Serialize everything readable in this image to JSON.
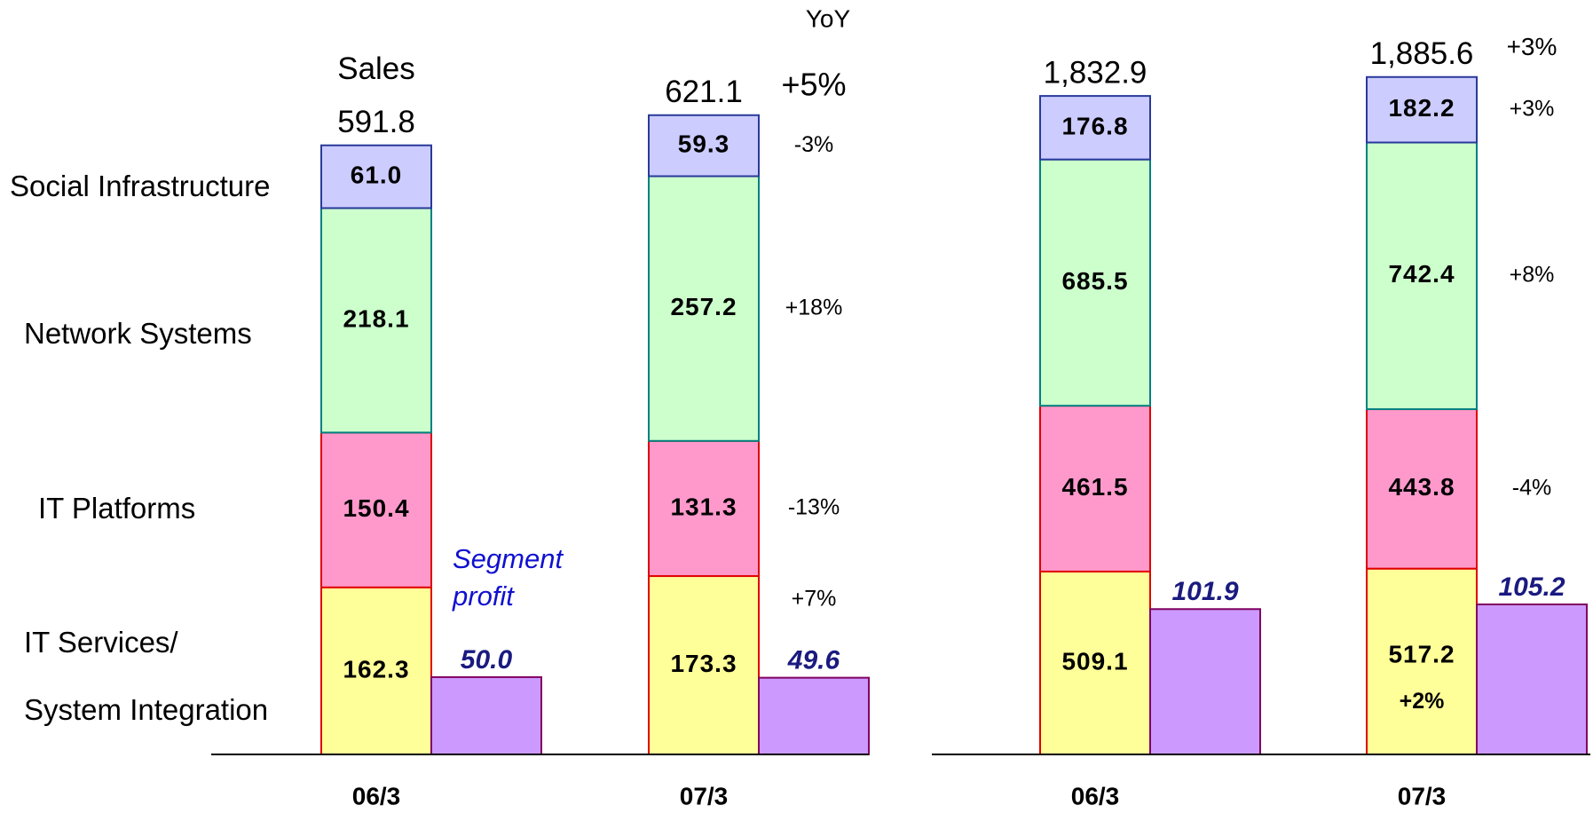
{
  "chart_data": [
    {
      "type": "bar",
      "stacked": true,
      "categories": [
        "06/3",
        "07/3"
      ],
      "total_label": "Sales",
      "yoy_label": "YoY",
      "totals": [
        591.8,
        621.1
      ],
      "total_yoy": 5,
      "total_yoy_label": "+5%",
      "ylim": [
        0,
        733
      ],
      "y2lim": [
        0,
        488
      ],
      "series": [
        {
          "name": "IT Services/\nSystem Integration",
          "color": "#ffff99",
          "border": "#e00000",
          "values": [
            162.3,
            173.3
          ],
          "value_labels": [
            "162.3",
            "173.3"
          ],
          "yoy": 7,
          "yoy_label": "+7%"
        },
        {
          "name": "IT Platforms",
          "color": "#ff99cc",
          "border": "#e00000",
          "values": [
            150.4,
            131.3
          ],
          "value_labels": [
            "150.4",
            "131.3"
          ],
          "yoy": -13,
          "yoy_label": "-13%"
        },
        {
          "name": "Network Systems",
          "color": "#ccffcc",
          "border": "#008080",
          "values": [
            218.1,
            257.2
          ],
          "value_labels": [
            "218.1",
            "257.2"
          ],
          "yoy": 18,
          "yoy_label": "+18%"
        },
        {
          "name": "Social Infrastructure",
          "color": "#ccccff",
          "border": "#2a3a9a",
          "values": [
            61.0,
            59.3
          ],
          "value_labels": [
            "61.0",
            "59.3"
          ],
          "yoy": -3,
          "yoy_label": "-3%"
        }
      ],
      "profit": {
        "name": "Segment\nprofit",
        "color": "#cc99ff",
        "border": "#800060",
        "axis": "y2",
        "values": [
          50.0,
          49.6
        ],
        "value_labels": [
          "50.0",
          "49.6"
        ]
      }
    },
    {
      "type": "bar",
      "stacked": true,
      "categories": [
        "06/3",
        "07/3"
      ],
      "totals": [
        1832.9,
        1885.6
      ],
      "totals_labels": [
        "1,832.9",
        "1,885.6"
      ],
      "total_yoy": 3,
      "total_yoy_label": "+3%",
      "ylim": [
        0,
        2100
      ],
      "y2lim": [
        0,
        529
      ],
      "series": [
        {
          "color": "#ffff99",
          "border": "#e00000",
          "values": [
            509.1,
            517.2
          ],
          "value_labels": [
            "509.1",
            "517.2"
          ],
          "yoy": 2,
          "yoy_label": "+2%"
        },
        {
          "color": "#ff99cc",
          "border": "#e00000",
          "values": [
            461.5,
            443.8
          ],
          "value_labels": [
            "461.5",
            "443.8"
          ],
          "yoy": -4,
          "yoy_label": "-4%"
        },
        {
          "color": "#ccffcc",
          "border": "#008080",
          "values": [
            685.5,
            742.4
          ],
          "value_labels": [
            "685.5",
            "742.4"
          ],
          "yoy": 8,
          "yoy_label": "+8%"
        },
        {
          "color": "#ccccff",
          "border": "#2a3a9a",
          "values": [
            176.8,
            182.2
          ],
          "value_labels": [
            "176.8",
            "182.2"
          ],
          "yoy": 3,
          "yoy_label": "+3%"
        }
      ],
      "profit": {
        "color": "#cc99ff",
        "border": "#800060",
        "axis": "y2",
        "values": [
          101.9,
          105.2
        ],
        "value_labels": [
          "101.9",
          "105.2"
        ]
      }
    }
  ]
}
